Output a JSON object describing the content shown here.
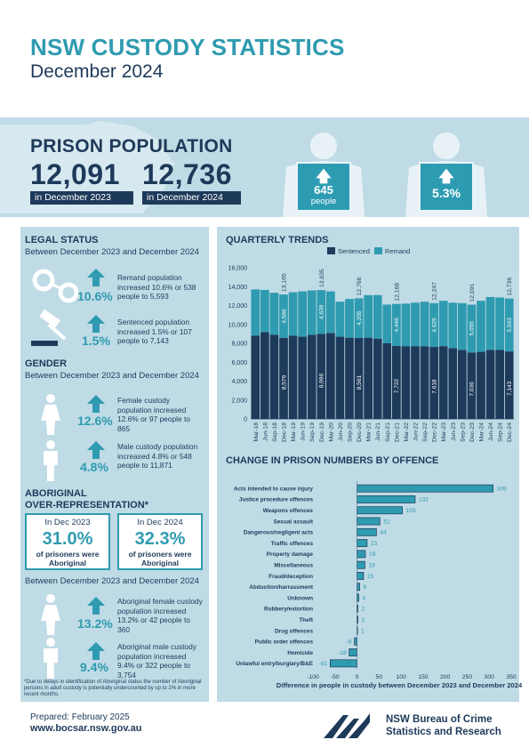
{
  "header": {
    "title": "NSW CUSTODY STATISTICS",
    "subtitle": "December 2024"
  },
  "hero": {
    "title": "PRISON POPULATION",
    "prev_value": "12,091",
    "prev_label": "in December 2023",
    "curr_value": "12,736",
    "curr_label": "in December 2024",
    "change_people": "645",
    "change_people_unit": "people",
    "change_pct": "5.3%"
  },
  "legal_status": {
    "heading": "LEGAL STATUS",
    "sub": "Between December 2023 and December 2024",
    "remand_pct": "10.6%",
    "remand_text": "Remand population increased 10.6% or 538 people to 5,593",
    "sentenced_pct": "1.5%",
    "sentenced_text": "Sentenced population increased 1.5% or 107 people to 7,143"
  },
  "gender": {
    "heading": "GENDER",
    "sub": "Between December 2023 and December 2024",
    "female_pct": "12.6%",
    "female_text": "Female custody population increased 12.6% or 97 people to 865",
    "male_pct": "4.8%",
    "male_text": "Male custody population increased 4.8% or 548 people to 11,871"
  },
  "aboriginal": {
    "heading_1": "ABORIGINAL",
    "heading_2": "OVER-REPRESENTATION*",
    "box1_label": "In Dec 2023",
    "box1_pct": "31.0%",
    "box1_desc": "of prisoners were Aboriginal",
    "box2_label": "In Dec 2024",
    "box2_pct": "32.3%",
    "box2_desc": "of prisoners were Aboriginal",
    "sub": "Between December 2023 and December 2024",
    "female_pct": "13.2%",
    "female_text": "Aboriginal female custody population increased 13.2% or 42 people to 360",
    "male_pct": "9.4%",
    "male_text": "Aboriginal male custody population increased 9.4% or 322 people to 3,754",
    "footnote": "*Due to delays in identification of Aboriginal status the number of Aboriginal persons in adult custody is potentially undercounted by up to 2% in more recent months."
  },
  "footer": {
    "prepared": "Prepared: February 2025",
    "url": "www.bocsar.nsw.gov.au",
    "org_line1": "NSW Bureau of Crime",
    "org_line2": "Statistics and Research"
  },
  "colors": {
    "sentenced": "#1e3a5a",
    "remand": "#2f9bb0",
    "panel": "#bfdbe6",
    "accent": "#2f9bb0"
  },
  "chart_data": [
    {
      "type": "bar",
      "stacked": true,
      "title": "QUARTERLY TRENDS",
      "categories": [
        "Mar-18",
        "Jun-18",
        "Sep-18",
        "Dec-18",
        "Mar-19",
        "Jun-19",
        "Sep-19",
        "Dec-19",
        "Mar-20",
        "Jun-20",
        "Sep-20",
        "Dec-20",
        "Mar-21",
        "Jun-21",
        "Sep-21",
        "Dec-21",
        "Mar-22",
        "Jun-22",
        "Sep-22",
        "Dec-22",
        "Mar-23",
        "Jun-23",
        "Sep-23",
        "Dec-23",
        "Mar-24",
        "Jun-24",
        "Sep-24",
        "Dec-24"
      ],
      "series": [
        {
          "name": "Sentenced",
          "values": [
            8800,
            9200,
            8900,
            8579,
            8800,
            8700,
            8900,
            8996,
            9100,
            8700,
            8600,
            8561,
            8600,
            8500,
            8000,
            7722,
            7700,
            7700,
            7700,
            7618,
            7700,
            7500,
            7300,
            7036,
            7100,
            7300,
            7300,
            7143
          ]
        },
        {
          "name": "Remand",
          "values": [
            4900,
            4450,
            4450,
            4586,
            4600,
            4800,
            4700,
            4639,
            4400,
            3700,
            4100,
            4205,
            4500,
            4600,
            4100,
            4446,
            4500,
            4600,
            4700,
            4629,
            4800,
            4800,
            4950,
            5055,
            5400,
            5600,
            5550,
            5593
          ]
        }
      ],
      "total_labels": {
        "Dec-18": "13,165",
        "Dec-19": "13,635",
        "Dec-20": "12,766",
        "Dec-21": "12,168",
        "Dec-22": "12,247",
        "Dec-23": "12,091",
        "Dec-24": "12,736"
      },
      "bar_labels": {
        "Dec-18": {
          "Sentenced": "8,579",
          "Remand": "4,586"
        },
        "Dec-19": {
          "Sentenced": "8,996",
          "Remand": "4,639"
        },
        "Dec-20": {
          "Sentenced": "8,561",
          "Remand": "4,205"
        },
        "Dec-21": {
          "Sentenced": "7,722",
          "Remand": "4,446"
        },
        "Dec-22": {
          "Sentenced": "7,618",
          "Remand": "4,629"
        },
        "Dec-23": {
          "Sentenced": "7,036",
          "Remand": "5,055"
        },
        "Dec-24": {
          "Sentenced": "7,143",
          "Remand": "5,593"
        }
      },
      "ylim": [
        0,
        16000
      ],
      "yticks": [
        "0",
        "2,000",
        "4,000",
        "6,000",
        "8,000",
        "10,000",
        "12,000",
        "14,000",
        "16,000"
      ],
      "legend": "top",
      "grid": false
    },
    {
      "type": "bar",
      "orientation": "horizontal",
      "title": "CHANGE IN PRISON NUMBERS BY OFFENCE",
      "xlabel": "Difference in people in custody between December 2023 and December 2024",
      "categories": [
        "Acts intended to cause injury",
        "Justice procedure offences",
        "Weapons offences",
        "Sexual assault",
        "Dangerous/negligent acts",
        "Traffic offences",
        "Property damage",
        "Miscellaneous",
        "Fraud/deception",
        "Abduction/harrassment",
        "Unknown",
        "Robbery/extortion",
        "Theft",
        "Drug offences",
        "Public order offences",
        "Homicide",
        "Unlawful entry/burglary/B&E"
      ],
      "values": [
        309,
        132,
        103,
        52,
        44,
        23,
        19,
        18,
        15,
        6,
        4,
        2,
        2,
        1,
        -6,
        -18,
        -61
      ],
      "xlim": [
        -100,
        350
      ],
      "xticks": [
        "-100",
        "-50",
        "0",
        "50",
        "100",
        "150",
        "200",
        "250",
        "300",
        "350"
      ],
      "grid": false
    }
  ]
}
